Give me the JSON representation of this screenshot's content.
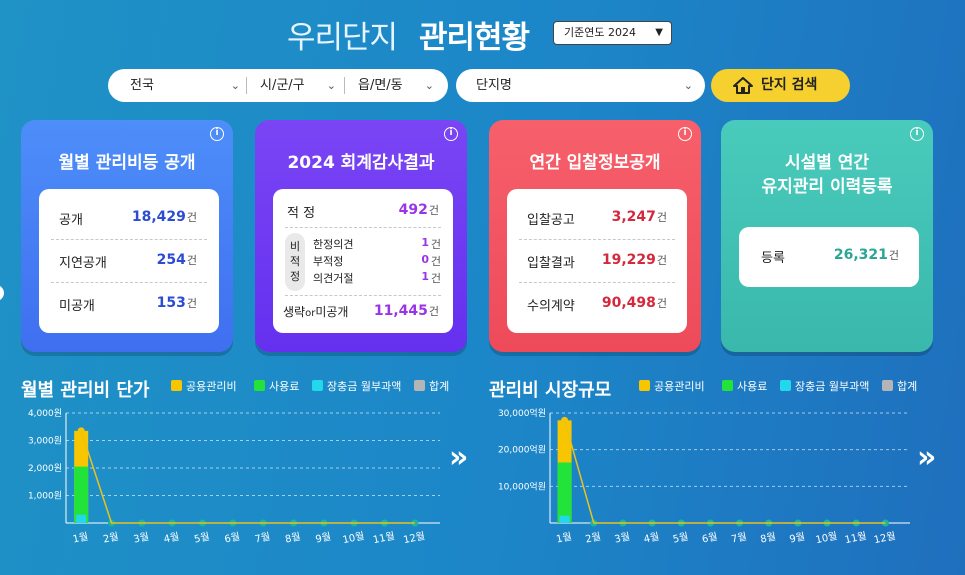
{
  "header": {
    "title_light": "우리단지",
    "title_bold": "관리현황",
    "year_select": "기준연도 2024"
  },
  "search": {
    "region": "전국",
    "city": "시/군/구",
    "town": "읍/면/동",
    "complex": "단지명",
    "button": "단지 검색"
  },
  "cards": {
    "disclosure": {
      "title": "월별 관리비등 공개",
      "rows": [
        {
          "label": "공개",
          "value": "18,429",
          "unit": "건"
        },
        {
          "label": "지연공개",
          "value": "254",
          "unit": "건"
        },
        {
          "label": "미공개",
          "value": "153",
          "unit": "건"
        }
      ]
    },
    "audit": {
      "title": "2024 회계감사결과",
      "proper_label": "적 정",
      "proper_value": "492",
      "unit": "건",
      "improper_tag": "비 적 정",
      "improper_rows": [
        {
          "label": "한정의견",
          "value": "1",
          "unit": "건"
        },
        {
          "label": "부적정",
          "value": "0",
          "unit": "건"
        },
        {
          "label": "의견거절",
          "value": "1",
          "unit": "건"
        }
      ],
      "omit_label_a": "생략",
      "omit_label_or": "or",
      "omit_label_b": "미공개",
      "omit_value": "11,445"
    },
    "bidding": {
      "title": "연간 입찰정보공개",
      "rows": [
        {
          "label": "입찰공고",
          "value": "3,247",
          "unit": "건"
        },
        {
          "label": "입찰결과",
          "value": "19,229",
          "unit": "건"
        },
        {
          "label": "수의계약",
          "value": "90,498",
          "unit": "건"
        }
      ]
    },
    "facility": {
      "title_line1": "시설별 연간",
      "title_line2": "유지관리 이력등록",
      "label": "등록",
      "value": "26,321",
      "unit": "건"
    },
    "info_icon": "i"
  },
  "legend": {
    "common": "공용관리비",
    "usage": "사용료",
    "reserve": "장충금 월부과액",
    "total": "합계"
  },
  "colors": {
    "common": "#f7c600",
    "usage": "#22e33a",
    "reserve": "#24d8ec",
    "total": "#b5b5b5"
  },
  "sections": {
    "unit_price_title": "월별 관리비 단가",
    "market_title": "관리비 시장규모"
  },
  "chart_data": [
    {
      "type": "bar",
      "title": "월별 관리비 단가",
      "categories": [
        "1월",
        "2월",
        "3월",
        "4월",
        "5월",
        "6월",
        "7월",
        "8월",
        "9월",
        "10월",
        "11월",
        "12월"
      ],
      "y_ticks": [
        "1,000원",
        "2,000원",
        "3,000원",
        "4,000원"
      ],
      "ylim": [
        0,
        4000
      ],
      "series": [
        {
          "name": "공용관리비",
          "values": [
            3350,
            0,
            0,
            0,
            0,
            0,
            0,
            0,
            0,
            0,
            0,
            0
          ]
        },
        {
          "name": "사용료",
          "values": [
            2050,
            0,
            0,
            0,
            0,
            0,
            0,
            0,
            0,
            0,
            0,
            0
          ]
        },
        {
          "name": "장충금 월부과액",
          "values": [
            300,
            0,
            0,
            0,
            0,
            0,
            0,
            0,
            0,
            0,
            0,
            0
          ]
        },
        {
          "name": "합계",
          "values": [
            3350,
            0,
            0,
            0,
            0,
            0,
            0,
            0,
            0,
            0,
            0,
            0
          ]
        }
      ]
    },
    {
      "type": "bar",
      "title": "관리비 시장규모",
      "categories": [
        "1월",
        "2월",
        "3월",
        "4월",
        "5월",
        "6월",
        "7월",
        "8월",
        "9월",
        "10월",
        "11월",
        "12월"
      ],
      "y_ticks": [
        "10,000억원",
        "20,000억원",
        "30,000억원"
      ],
      "ylim": [
        0,
        30000
      ],
      "series": [
        {
          "name": "공용관리비",
          "values": [
            28000,
            0,
            0,
            0,
            0,
            0,
            0,
            0,
            0,
            0,
            0,
            0
          ]
        },
        {
          "name": "사용료",
          "values": [
            16500,
            0,
            0,
            0,
            0,
            0,
            0,
            0,
            0,
            0,
            0,
            0
          ]
        },
        {
          "name": "장충금 월부과액",
          "values": [
            2000,
            0,
            0,
            0,
            0,
            0,
            0,
            0,
            0,
            0,
            0,
            0
          ]
        },
        {
          "name": "합계",
          "values": [
            28000,
            0,
            0,
            0,
            0,
            0,
            0,
            0,
            0,
            0,
            0,
            0
          ]
        }
      ]
    }
  ]
}
